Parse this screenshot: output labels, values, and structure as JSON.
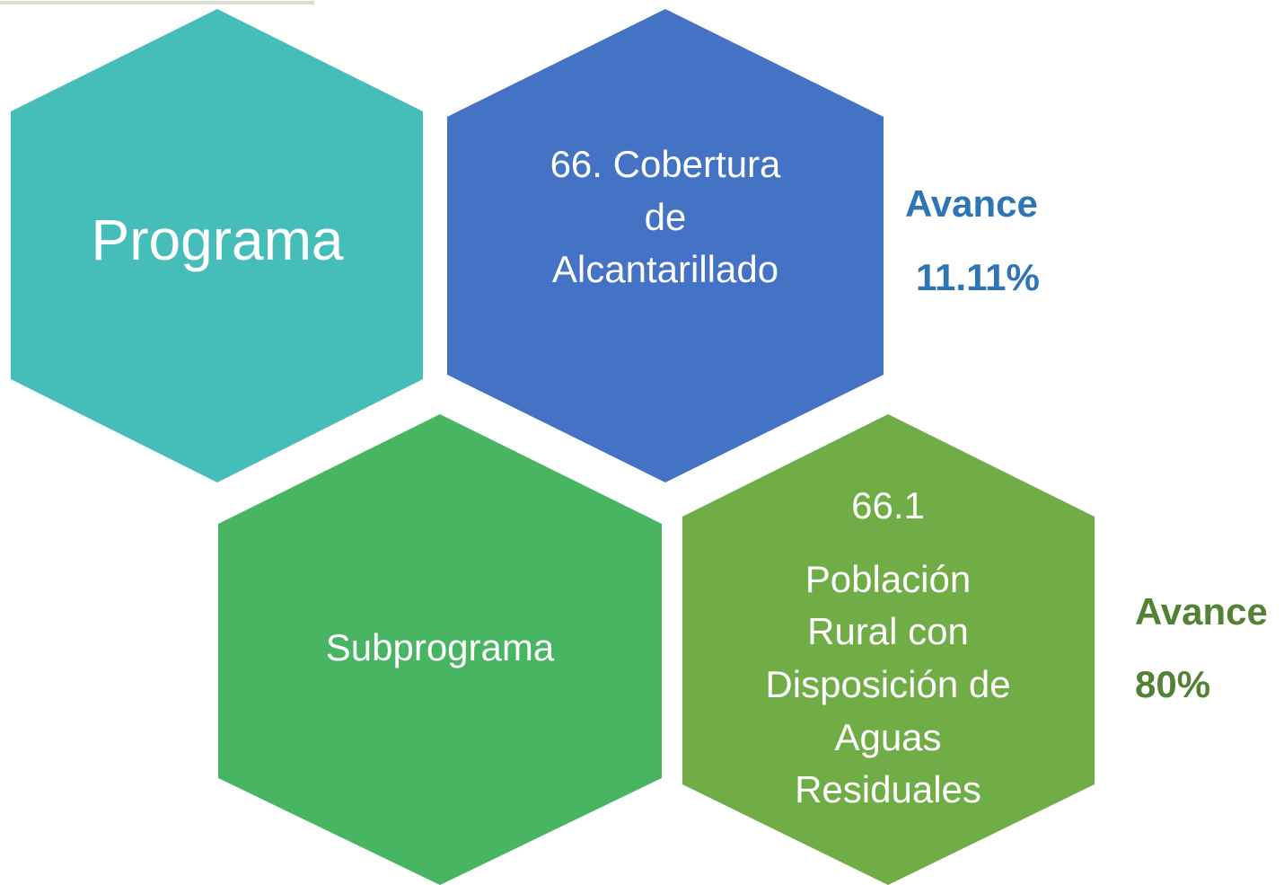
{
  "nodes": [
    {
      "label": "Programa"
    },
    {
      "lines": [
        "66. Cobertura",
        "de",
        "Alcantarillado"
      ]
    },
    {
      "label": "Subprograma"
    },
    {
      "lines": [
        "66.1",
        "Población",
        "Rural con",
        "Disposición de",
        "Aguas",
        "Residuales"
      ]
    }
  ],
  "progress": [
    {
      "label": "Avance",
      "value": "11.11%"
    },
    {
      "label": "Avance",
      "value": "80%"
    }
  ]
}
